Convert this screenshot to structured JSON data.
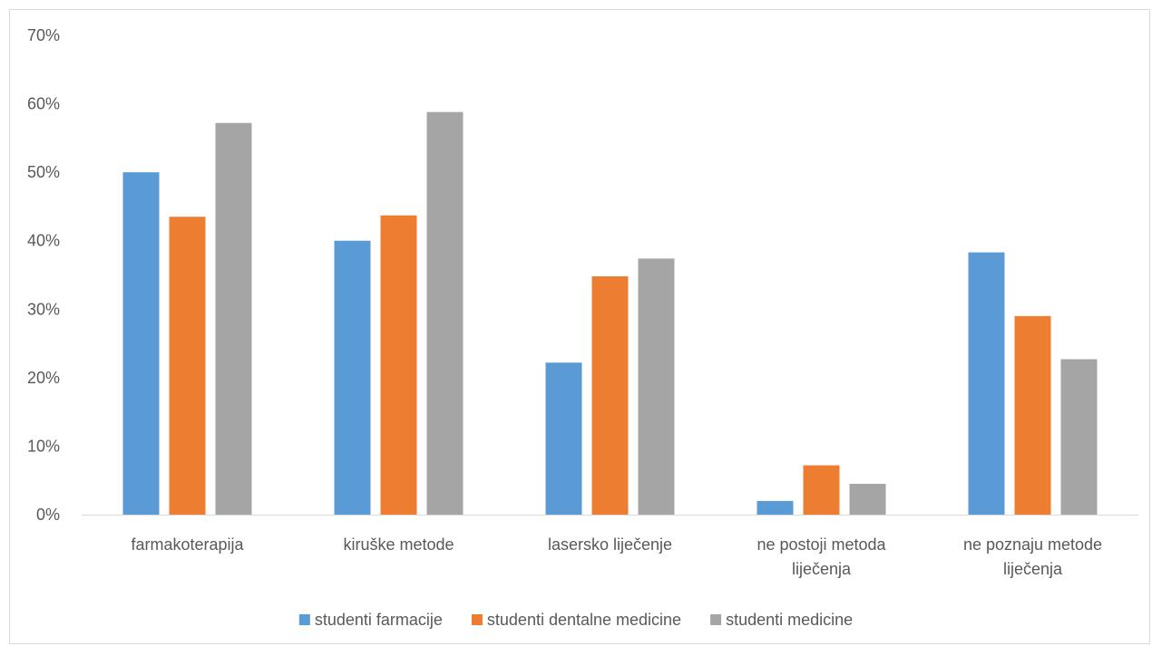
{
  "chart_data": {
    "type": "bar",
    "categories": [
      [
        "farmakoterapija"
      ],
      [
        "kiruške metode"
      ],
      [
        "lasersko liječenje"
      ],
      [
        "ne postoji metoda",
        "liječenja"
      ],
      [
        "ne poznaju metode",
        "liječenja"
      ]
    ],
    "series": [
      {
        "name": "studenti farmacije",
        "color": "#5B9BD5",
        "values": [
          50,
          40,
          22.2,
          2,
          38.3
        ]
      },
      {
        "name": "studenti dentalne medicine",
        "color": "#ED7D31",
        "values": [
          43.5,
          43.7,
          34.8,
          7.2,
          29
        ]
      },
      {
        "name": "studenti medicine",
        "color": "#A5A5A5",
        "values": [
          57.2,
          58.8,
          37.4,
          4.5,
          22.7
        ]
      }
    ],
    "yTicks": [
      "0%",
      "10%",
      "20%",
      "30%",
      "40%",
      "50%",
      "60%",
      "70%"
    ],
    "ylim": [
      0,
      70
    ],
    "grid": false,
    "legend": "bottom"
  }
}
